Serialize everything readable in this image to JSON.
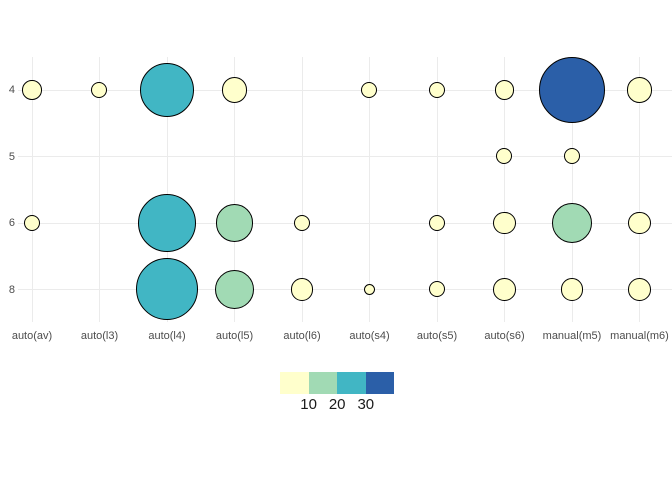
{
  "chart_data": {
    "type": "scatter",
    "subtype": "bubble-count-plot",
    "x_categories": [
      "auto(av)",
      "auto(l3)",
      "auto(l4)",
      "auto(l5)",
      "auto(l6)",
      "auto(s4)",
      "auto(s5)",
      "auto(s6)",
      "manual(m5)",
      "manual(m6)"
    ],
    "y_categories_top_to_bottom": [
      "4",
      "5",
      "6",
      "8"
    ],
    "points": [
      {
        "x": "auto(av)",
        "y": "4",
        "n": 3
      },
      {
        "x": "auto(l3)",
        "y": "4",
        "n": 2
      },
      {
        "x": "auto(l4)",
        "y": "4",
        "n": 23
      },
      {
        "x": "auto(l5)",
        "y": "4",
        "n": 5
      },
      {
        "x": "auto(s4)",
        "y": "4",
        "n": 2
      },
      {
        "x": "auto(s5)",
        "y": "4",
        "n": 2
      },
      {
        "x": "auto(s6)",
        "y": "4",
        "n": 3
      },
      {
        "x": "manual(m5)",
        "y": "4",
        "n": 34
      },
      {
        "x": "manual(m6)",
        "y": "4",
        "n": 5
      },
      {
        "x": "auto(s6)",
        "y": "5",
        "n": 2
      },
      {
        "x": "manual(m5)",
        "y": "5",
        "n": 2
      },
      {
        "x": "auto(av)",
        "y": "6",
        "n": 2
      },
      {
        "x": "auto(l4)",
        "y": "6",
        "n": 27
      },
      {
        "x": "auto(l5)",
        "y": "6",
        "n": 11
      },
      {
        "x": "auto(l6)",
        "y": "6",
        "n": 2
      },
      {
        "x": "auto(s5)",
        "y": "6",
        "n": 2
      },
      {
        "x": "auto(s6)",
        "y": "6",
        "n": 4
      },
      {
        "x": "manual(m5)",
        "y": "6",
        "n": 13
      },
      {
        "x": "manual(m6)",
        "y": "6",
        "n": 4
      },
      {
        "x": "auto(l4)",
        "y": "8",
        "n": 30
      },
      {
        "x": "auto(l5)",
        "y": "8",
        "n": 12
      },
      {
        "x": "auto(l6)",
        "y": "8",
        "n": 4
      },
      {
        "x": "auto(s4)",
        "y": "8",
        "n": 1
      },
      {
        "x": "auto(s5)",
        "y": "8",
        "n": 2
      },
      {
        "x": "auto(s6)",
        "y": "8",
        "n": 4
      },
      {
        "x": "manual(m5)",
        "y": "8",
        "n": 4
      },
      {
        "x": "manual(m6)",
        "y": "8",
        "n": 4
      }
    ],
    "size_encoding": "area proportional to n, max bubble diameter 66px at n=34",
    "fill_bins": [
      {
        "range": "0-10",
        "color": "#ffffcc"
      },
      {
        "range": "10-20",
        "color": "#a1dab4"
      },
      {
        "range": "20-30",
        "color": "#41b6c4"
      },
      {
        "range": ">30",
        "color": "#2b5fa8"
      }
    ],
    "grid": "on",
    "legend_position": "bottom-center",
    "title": "",
    "xlabel": "",
    "ylabel": ""
  },
  "x_axis": {
    "labels": [
      "auto(av)",
      "auto(l3)",
      "auto(l4)",
      "auto(l5)",
      "auto(l6)",
      "auto(s4)",
      "auto(s5)",
      "auto(s6)",
      "manual(m5)",
      "manual(m6)"
    ]
  },
  "y_axis": {
    "labels": [
      "4",
      "5",
      "6",
      "8"
    ]
  },
  "legend": {
    "tick_labels": [
      "10",
      "20",
      "30"
    ],
    "swatch_colors": [
      "#ffffcc",
      "#a1dab4",
      "#41b6c4",
      "#2b5fa8"
    ]
  },
  "colors": {
    "background": "#ffffff",
    "gridline": "#ebebeb",
    "axis_text": "#4d4d4d",
    "legend_text": "#1a1a1a",
    "bubble_stroke": "#000000"
  }
}
